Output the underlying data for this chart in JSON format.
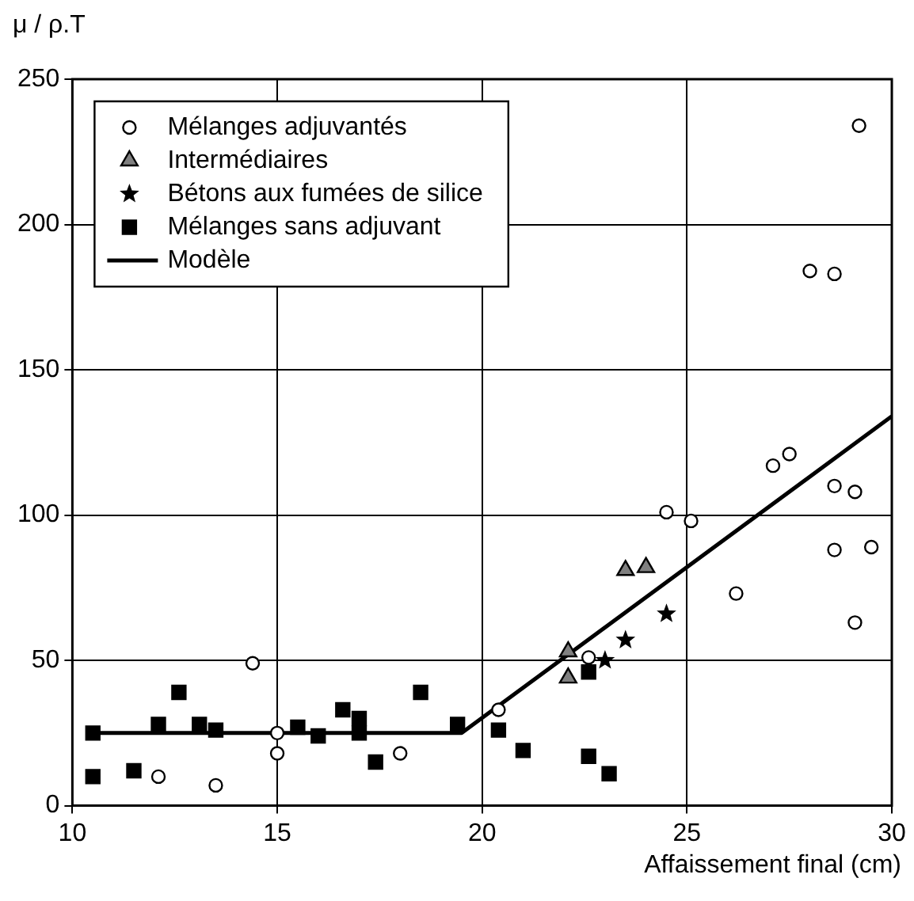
{
  "chart_data": {
    "type": "scatter",
    "xlabel": "Affaissement final (cm)",
    "ylabel": "μ / ρ.T",
    "xlim": [
      10,
      30
    ],
    "xticks": [
      10,
      15,
      20,
      25,
      30
    ],
    "ylim": [
      0,
      250
    ],
    "yticks": [
      0,
      50,
      100,
      150,
      200,
      250
    ],
    "grid": true,
    "legend": "top left",
    "series": [
      {
        "name": "Mélanges adjuvantés",
        "color": "#000000",
        "marker": "circle",
        "x": [
          14.4,
          15.0,
          15.0,
          18.0,
          20.4,
          12.1,
          13.5,
          22.6,
          24.5,
          25.1,
          26.2,
          27.1,
          27.5,
          28.0,
          28.6,
          28.6,
          28.6,
          29.1,
          29.1,
          29.2,
          29.5
        ],
        "values": [
          49,
          25,
          18,
          18,
          33,
          10,
          7,
          51,
          101,
          98,
          73,
          117,
          121,
          184,
          183,
          110,
          88,
          108,
          63,
          234,
          89
        ]
      },
      {
        "name": "Intermédiaires",
        "color": "#808080",
        "marker": "triangle",
        "x": [
          22.1,
          22.1,
          23.5,
          24.0
        ],
        "values": [
          53,
          44,
          81,
          82
        ]
      },
      {
        "name": "Bétons aux fumées de silice",
        "color": "#000000",
        "marker": "star",
        "x": [
          23.0,
          23.5,
          24.5
        ],
        "values": [
          50,
          57,
          66
        ]
      },
      {
        "name": "Mélanges sans adjuvant",
        "color": "#000000",
        "marker": "square",
        "x": [
          10.5,
          10.5,
          11.5,
          12.1,
          12.6,
          13.1,
          13.5,
          15.5,
          16.0,
          16.6,
          17.0,
          17.0,
          17.4,
          18.5,
          19.4,
          20.4,
          21.0,
          22.6,
          22.6,
          23.1
        ],
        "values": [
          25,
          10,
          12,
          28,
          39,
          28,
          26,
          27,
          24,
          33,
          30,
          25,
          15,
          39,
          28,
          26,
          19,
          46,
          17,
          11
        ]
      },
      {
        "name": "Modèle",
        "type": "line",
        "color": "#000000",
        "marker": "none",
        "line_style": "solid",
        "x": [
          10.5,
          19.5,
          30
        ],
        "values": [
          25,
          25,
          134
        ]
      }
    ]
  }
}
